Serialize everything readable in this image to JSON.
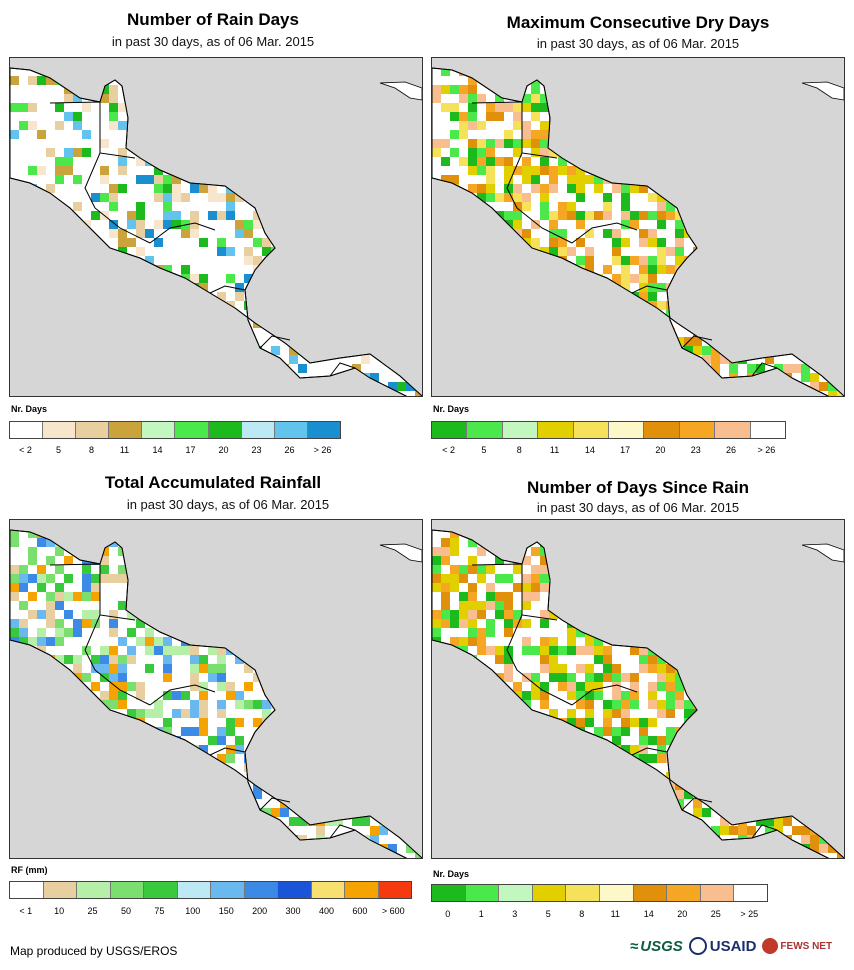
{
  "panels": [
    {
      "title": "Number of Rain Days",
      "subtitle": "in past 30 days, as of 06 Mar. 2015",
      "legend_title": "Nr. Days",
      "legend_colors": [
        "#ffffff",
        "#f8e6cc",
        "#e8cfa0",
        "#cba33c",
        "#c2f8c0",
        "#4ae84a",
        "#1cba1c",
        "#bde9f5",
        "#62c4ec",
        "#1a8fd0"
      ],
      "tick_labels": [
        "< 2",
        "5",
        "8",
        "11",
        "14",
        "17",
        "20",
        "23",
        "26",
        "> 26"
      ],
      "map_palette": [
        "#f8e6cc",
        "#e8cfa0",
        "#cba33c",
        "#4ae84a",
        "#1cba1c",
        "#62c4ec",
        "#1a8fd0"
      ]
    },
    {
      "title": "Maximum Consecutive Dry Days",
      "subtitle": "in past 30 days, as of 06 Mar. 2015",
      "legend_title": "Nr. Days",
      "legend_colors": [
        "#1cba1c",
        "#4ae84a",
        "#c2f8c0",
        "#e2cf00",
        "#f6e25a",
        "#fdf8c8",
        "#e0900a",
        "#f5a623",
        "#f8be90",
        "#ffffff"
      ],
      "tick_labels": [
        "< 2",
        "5",
        "8",
        "11",
        "14",
        "17",
        "20",
        "23",
        "26",
        "> 26"
      ],
      "map_palette": [
        "#e0900a",
        "#f5a623",
        "#f8be90",
        "#f6e25a",
        "#e2cf00",
        "#4ae84a",
        "#1cba1c"
      ]
    },
    {
      "title": "Total Accumulated Rainfall",
      "subtitle": "in past 30 days, as of 06 Mar. 2015",
      "legend_title": "RF (mm)",
      "legend_colors": [
        "#ffffff",
        "#e8cfa0",
        "#b6f0a8",
        "#7adf6e",
        "#39c93c",
        "#bde9f5",
        "#6ab8f0",
        "#3a8ae6",
        "#1a55d8",
        "#f8e070",
        "#f5a300",
        "#f53a10"
      ],
      "tick_labels": [
        "< 1",
        "10",
        "25",
        "50",
        "75",
        "100",
        "150",
        "200",
        "300",
        "400",
        "600",
        "> 600"
      ],
      "map_palette": [
        "#b6f0a8",
        "#7adf6e",
        "#39c93c",
        "#e8cfa0",
        "#6ab8f0",
        "#3a8ae6",
        "#f5a300"
      ]
    },
    {
      "title": "Number of Days Since Rain",
      "subtitle": "in past 30 days, as of 06 Mar. 2015",
      "legend_title": "Nr. Days",
      "legend_colors": [
        "#1cba1c",
        "#4ae84a",
        "#c2f8c0",
        "#e2cf00",
        "#f6e25a",
        "#fdf8c8",
        "#e0900a",
        "#f5a623",
        "#f8be90",
        "#ffffff"
      ],
      "tick_labels": [
        "0",
        "1",
        "3",
        "5",
        "8",
        "11",
        "14",
        "20",
        "25",
        "> 25"
      ],
      "map_palette": [
        "#1cba1c",
        "#4ae84a",
        "#e2cf00",
        "#e0900a",
        "#f8be90",
        "#f5a623"
      ]
    }
  ],
  "colors": {
    "ocean": "#d6d6d6",
    "land": "#ffffff",
    "border": "#000000"
  },
  "footer": {
    "credit": "Map produced by USGS/EROS"
  },
  "logos": {
    "usgs": "USGS",
    "usaid": "USAID",
    "fews": "FEWS NET"
  }
}
